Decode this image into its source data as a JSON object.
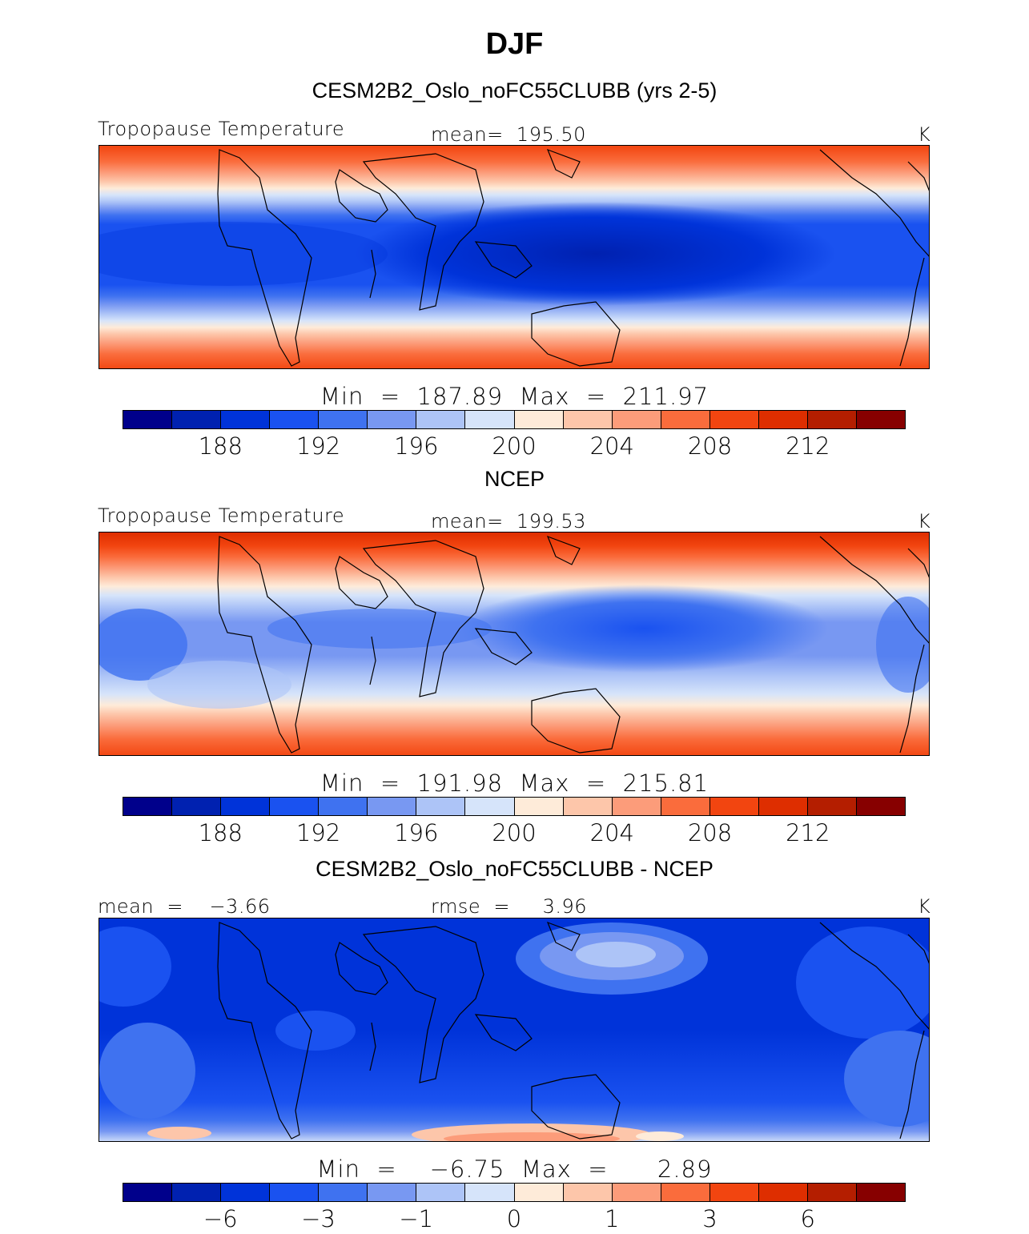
{
  "title": "DJF",
  "colors": [
    "#00008b",
    "#0021b0",
    "#0033d9",
    "#1a52f0",
    "#3f72f0",
    "#7898f2",
    "#adc4f7",
    "#d6e4fa",
    "#feebd9",
    "#fdc6aa",
    "#fc9c7a",
    "#fa6c3c",
    "#f24510",
    "#de2e00",
    "#b41e00",
    "#870000"
  ],
  "panels": [
    {
      "title": "CESM2B2_Oslo_noFC55CLUBB (yrs 2-5)",
      "left_label": "Tropopause Temperature",
      "center_label": "mean=  195.50",
      "units": "K",
      "minmax": "Min  =  187.89  Max  =  211.97",
      "ticks": [
        "188",
        "192",
        "196",
        "200",
        "204",
        "208",
        "212"
      ]
    },
    {
      "title": "NCEP",
      "left_label": "Tropopause Temperature",
      "center_label": "mean=  199.53",
      "units": "K",
      "minmax": "Min  =  191.98  Max  =  215.81",
      "ticks": [
        "188",
        "192",
        "196",
        "200",
        "204",
        "208",
        "212"
      ]
    },
    {
      "title": "CESM2B2_Oslo_noFC55CLUBB - NCEP",
      "left_label": "mean  =    −3.66",
      "center_label": "rmse  =     3.96",
      "units": "K",
      "minmax": "Min  =    −6.75  Max  =      2.89",
      "ticks": [
        "−6",
        "−3",
        "−1",
        "0",
        "1",
        "3",
        "6"
      ]
    }
  ]
}
